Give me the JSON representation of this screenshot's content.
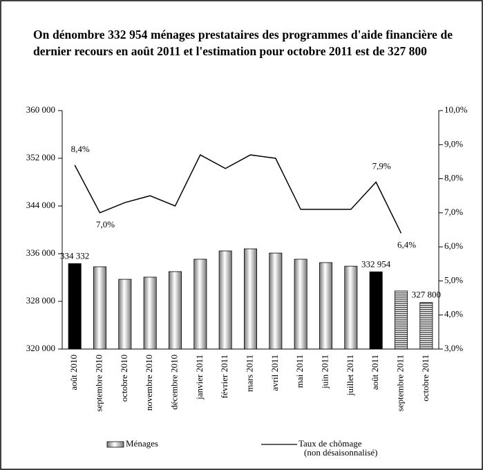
{
  "chart_data": {
    "type": "bar-line",
    "title": "On dénombre 332 954 ménages prestataires des programmes d'aide financière de dernier recours en août 2011 et l'estimation pour octobre 2011 est de 327 800",
    "categories": [
      "août 2010",
      "septembre 2010",
      "octobre 2010",
      "novembre 2010",
      "décembre 2010",
      "janvier 2011",
      "février 2011",
      "mars 2011",
      "avril 2011",
      "mai 2011",
      "juin 2011",
      "juillet 2011",
      "août 2011",
      "septembre 2011",
      "octobre 2011"
    ],
    "series": [
      {
        "name": "Ménages",
        "type": "bar",
        "color": "#b0b0b0",
        "values": [
          334332,
          333800,
          331700,
          332060,
          332990,
          335070,
          336460,
          336810,
          336100,
          335070,
          334500,
          333900,
          332954,
          329740,
          327800
        ],
        "value_labels": [
          "334 332",
          null,
          null,
          null,
          null,
          null,
          null,
          null,
          null,
          null,
          null,
          null,
          "332 954",
          null,
          "327 800"
        ],
        "fills": [
          "solid",
          "gradient",
          "gradient",
          "gradient",
          "gradient",
          "gradient",
          "gradient",
          "gradient",
          "gradient",
          "gradient",
          "gradient",
          "gradient",
          "solid",
          "stripes",
          "stripes"
        ],
        "solid_color": "#000000"
      },
      {
        "name": "Taux de chômage",
        "legend_note": "(non désaisonnalisé)",
        "type": "line",
        "axis": "y2",
        "color": "#000000",
        "values": [
          8.4,
          7.0,
          7.3,
          7.5,
          7.2,
          8.7,
          8.3,
          8.7,
          8.6,
          7.1,
          7.1,
          7.1,
          7.9,
          6.4,
          null
        ],
        "value_labels": [
          "8,4%",
          "7,0%",
          null,
          null,
          null,
          null,
          null,
          null,
          null,
          null,
          null,
          null,
          "7,9%",
          "6,4%",
          null
        ]
      }
    ],
    "ylim": [
      320000,
      360000
    ],
    "yticks": [
      {
        "value": 320000,
        "label": "320 000"
      },
      {
        "value": 328000,
        "label": "328 000"
      },
      {
        "value": 336000,
        "label": "336 000"
      },
      {
        "value": 344000,
        "label": "344 000"
      },
      {
        "value": 352000,
        "label": "352 000"
      },
      {
        "value": 360000,
        "label": "360 000"
      }
    ],
    "y2lim": [
      3,
      10
    ],
    "y2ticks": [
      {
        "value": 3,
        "label": "3,0%"
      },
      {
        "value": 4,
        "label": "4,0%"
      },
      {
        "value": 5,
        "label": "5,0%"
      },
      {
        "value": 6,
        "label": "6,0%"
      },
      {
        "value": 7,
        "label": "7,0%"
      },
      {
        "value": 8,
        "label": "8,0%"
      },
      {
        "value": 9,
        "label": "9,0%"
      },
      {
        "value": 10,
        "label": "10,0%"
      }
    ],
    "grid": false
  }
}
